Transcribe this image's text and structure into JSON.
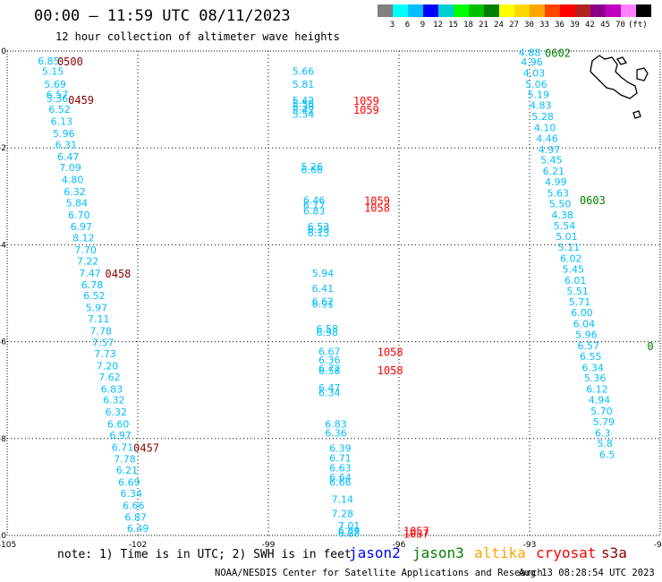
{
  "header": {
    "title": "00:00 – 11:59 UTC 08/11/2023",
    "subtitle": "12 hour collection of altimeter wave heights"
  },
  "color_scale": {
    "colors": [
      "#808080",
      "#00ffff",
      "#00bfff",
      "#0000ff",
      "#00ced1",
      "#00ff00",
      "#00c000",
      "#008000",
      "#ffff00",
      "#ffd700",
      "#ffa500",
      "#ff4500",
      "#ff0000",
      "#b22222",
      "#8b008b",
      "#c000c0",
      "#ff80ff",
      "#000000"
    ],
    "labels": [
      "3",
      "6",
      "9",
      "12",
      "15",
      "18",
      "21",
      "24",
      "27",
      "30",
      "33",
      "36",
      "39",
      "42",
      "45",
      "70",
      "(ft)"
    ]
  },
  "footer": {
    "note": "note: 1) Time is in UTC; 2) SWH is in feet",
    "credit": "NOAA/NESDIS Center for Satellite Applications and Research",
    "timestamp": "Aug 13 08:28:54 UTC 2023"
  },
  "satellites": [
    {
      "name": "jason2",
      "color": "#0000ff"
    },
    {
      "name": "jason3",
      "color": "#008000"
    },
    {
      "name": "altika",
      "color": "#ffa500"
    },
    {
      "name": "cryosat",
      "color": "#ff0000"
    },
    {
      "name": "s3a",
      "color": "#8b0000"
    }
  ],
  "chart_data": {
    "type": "scatter",
    "title": "00:00 – 11:59 UTC 08/11/2023",
    "subtitle": "12 hour collection of altimeter wave heights",
    "xlim": [
      -105,
      -90
    ],
    "ylim": [
      -10,
      0
    ],
    "x_ticks": [
      "-105",
      "-102",
      "-99",
      "-96",
      "-93",
      "-90"
    ],
    "y_ticks": [
      "0",
      "-2",
      "-4",
      "-6",
      "-8",
      "-10"
    ],
    "grid": true,
    "value_color": "#00bfff",
    "tracks": [
      {
        "name": "track-west",
        "time_color": "#8b0000",
        "points": [
          {
            "x": -104.3,
            "y": -0.2,
            "v": "6.85"
          },
          {
            "x": -104.2,
            "y": -0.42,
            "v": "5.15"
          },
          {
            "x": -104.15,
            "y": -0.68,
            "v": "5.69"
          },
          {
            "x": -104.1,
            "y": -0.9,
            "v": "6.57"
          },
          {
            "x": -104.1,
            "y": -0.98,
            "v": "5.36"
          },
          {
            "x": -104.05,
            "y": -1.2,
            "v": "6.52"
          },
          {
            "x": -104.0,
            "y": -1.45,
            "v": "6.13"
          },
          {
            "x": -103.95,
            "y": -1.7,
            "v": "5.96"
          },
          {
            "x": -103.9,
            "y": -1.93,
            "v": "6.31"
          },
          {
            "x": -103.85,
            "y": -2.18,
            "v": "6.47"
          },
          {
            "x": -103.8,
            "y": -2.4,
            "v": "7.09"
          },
          {
            "x": -103.75,
            "y": -2.65,
            "v": "4.80"
          },
          {
            "x": -103.7,
            "y": -2.9,
            "v": "6.32"
          },
          {
            "x": -103.65,
            "y": -3.13,
            "v": "5.84"
          },
          {
            "x": -103.6,
            "y": -3.38,
            "v": "6.70"
          },
          {
            "x": -103.55,
            "y": -3.62,
            "v": "6.97"
          },
          {
            "x": -103.5,
            "y": -3.85,
            "v": "8.12"
          },
          {
            "x": -103.45,
            "y": -4.1,
            "v": "7.70"
          },
          {
            "x": -103.4,
            "y": -4.33,
            "v": "7.22"
          },
          {
            "x": -103.35,
            "y": -4.58,
            "v": "7.47"
          },
          {
            "x": -103.3,
            "y": -4.82,
            "v": "6.78"
          },
          {
            "x": -103.25,
            "y": -5.05,
            "v": "6.52"
          },
          {
            "x": -103.2,
            "y": -5.3,
            "v": "5.97"
          },
          {
            "x": -103.15,
            "y": -5.53,
            "v": "7.11"
          },
          {
            "x": -103.1,
            "y": -5.78,
            "v": "7.78"
          },
          {
            "x": -103.05,
            "y": -6.02,
            "v": "7.57"
          },
          {
            "x": -103.0,
            "y": -6.25,
            "v": "7.73"
          },
          {
            "x": -102.95,
            "y": -6.5,
            "v": "7.20"
          },
          {
            "x": -102.9,
            "y": -6.73,
            "v": "7.62"
          },
          {
            "x": -102.85,
            "y": -6.98,
            "v": "6.83"
          },
          {
            "x": -102.8,
            "y": -7.2,
            "v": "6.32"
          },
          {
            "x": -102.75,
            "y": -7.45,
            "v": "6.32"
          },
          {
            "x": -102.7,
            "y": -7.7,
            "v": "6.60"
          },
          {
            "x": -102.65,
            "y": -7.93,
            "v": "6.97"
          },
          {
            "x": -102.6,
            "y": -8.18,
            "v": "6.71"
          },
          {
            "x": -102.55,
            "y": -8.42,
            "v": "7.78"
          },
          {
            "x": -102.5,
            "y": -8.65,
            "v": "6.21"
          },
          {
            "x": -102.45,
            "y": -8.9,
            "v": "6.69"
          },
          {
            "x": -102.4,
            "y": -9.13,
            "v": "6.34"
          },
          {
            "x": -102.35,
            "y": -9.38,
            "v": "6.66"
          },
          {
            "x": -102.3,
            "y": -9.62,
            "v": "6.87"
          },
          {
            "x": -102.25,
            "y": -9.85,
            "v": "6.49"
          }
        ],
        "times": [
          {
            "x": -103.85,
            "y": -0.2,
            "t": "0500"
          },
          {
            "x": -103.6,
            "y": -1.0,
            "t": "0459"
          },
          {
            "x": -102.75,
            "y": -4.58,
            "t": "0458"
          },
          {
            "x": -102.1,
            "y": -8.18,
            "t": "0457"
          }
        ]
      },
      {
        "name": "track-center",
        "time_color": "#ff0000",
        "points": [
          {
            "x": -98.45,
            "y": -0.42,
            "v": "5.66"
          },
          {
            "x": -98.45,
            "y": -0.68,
            "v": "5.81"
          },
          {
            "x": -98.45,
            "y": -1.02,
            "v": "5.42"
          },
          {
            "x": -98.45,
            "y": -1.08,
            "v": "5.58"
          },
          {
            "x": -98.45,
            "y": -1.15,
            "v": "5.38"
          },
          {
            "x": -98.45,
            "y": -1.22,
            "v": "5.42"
          },
          {
            "x": -98.45,
            "y": -1.3,
            "v": "5.54"
          },
          {
            "x": -98.25,
            "y": -2.38,
            "v": "5.26"
          },
          {
            "x": -98.25,
            "y": -2.45,
            "v": "6.66"
          },
          {
            "x": -98.2,
            "y": -3.08,
            "v": "6.46"
          },
          {
            "x": -98.2,
            "y": -3.18,
            "v": "6.17"
          },
          {
            "x": -98.2,
            "y": -3.3,
            "v": "6.83"
          },
          {
            "x": -98.1,
            "y": -3.62,
            "v": "6.53"
          },
          {
            "x": -98.1,
            "y": -3.68,
            "v": "6.38"
          },
          {
            "x": -98.1,
            "y": -3.75,
            "v": "6.13"
          },
          {
            "x": -98.0,
            "y": -4.58,
            "v": "5.94"
          },
          {
            "x": -98.0,
            "y": -4.9,
            "v": "6.41"
          },
          {
            "x": -98.0,
            "y": -5.17,
            "v": "6.62"
          },
          {
            "x": -98.0,
            "y": -5.22,
            "v": "6.91"
          },
          {
            "x": -97.9,
            "y": -5.73,
            "v": "6.58"
          },
          {
            "x": -97.9,
            "y": -5.8,
            "v": "6.98"
          },
          {
            "x": -97.85,
            "y": -6.2,
            "v": "6.67"
          },
          {
            "x": -97.85,
            "y": -6.38,
            "v": "6.36"
          },
          {
            "x": -97.85,
            "y": -6.55,
            "v": "6.72"
          },
          {
            "x": -97.85,
            "y": -6.6,
            "v": "6.58"
          },
          {
            "x": -97.85,
            "y": -6.95,
            "v": "6.47"
          },
          {
            "x": -97.85,
            "y": -7.05,
            "v": "6.34"
          },
          {
            "x": -97.7,
            "y": -7.7,
            "v": "6.83"
          },
          {
            "x": -97.7,
            "y": -7.88,
            "v": "6.36"
          },
          {
            "x": -97.6,
            "y": -8.2,
            "v": "6.39"
          },
          {
            "x": -97.6,
            "y": -8.4,
            "v": "6.71"
          },
          {
            "x": -97.6,
            "y": -8.6,
            "v": "6.63"
          },
          {
            "x": -97.6,
            "y": -8.8,
            "v": "6.64"
          },
          {
            "x": -97.6,
            "y": -8.9,
            "v": "6.66"
          },
          {
            "x": -97.55,
            "y": -9.25,
            "v": "7.14"
          },
          {
            "x": -97.55,
            "y": -9.55,
            "v": "7.28"
          },
          {
            "x": -97.4,
            "y": -9.8,
            "v": "7.01"
          },
          {
            "x": -97.4,
            "y": -9.9,
            "v": "6.89"
          },
          {
            "x": -97.4,
            "y": -9.95,
            "v": "6.88"
          }
        ],
        "times": [
          {
            "x": -97.05,
            "y": -1.02,
            "t": "1059"
          },
          {
            "x": -97.05,
            "y": -1.2,
            "t": "1059"
          },
          {
            "x": -96.8,
            "y": -3.08,
            "t": "1059"
          },
          {
            "x": -96.8,
            "y": -3.23,
            "t": "1058"
          },
          {
            "x": -96.5,
            "y": -6.2,
            "t": "1058"
          },
          {
            "x": -96.5,
            "y": -6.58,
            "t": "1058"
          },
          {
            "x": -95.9,
            "y": -9.9,
            "t": "1057"
          },
          {
            "x": -95.9,
            "y": -9.95,
            "t": "1057"
          }
        ]
      },
      {
        "name": "track-east",
        "time_color": "#008000",
        "points": [
          {
            "x": -93.25,
            "y": -0.03,
            "v": "4.88"
          },
          {
            "x": -93.2,
            "y": -0.22,
            "v": "4.96"
          },
          {
            "x": -93.15,
            "y": -0.45,
            "v": "4.03"
          },
          {
            "x": -93.1,
            "y": -0.68,
            "v": "5.06"
          },
          {
            "x": -93.05,
            "y": -0.9,
            "v": "5.19"
          },
          {
            "x": -93.0,
            "y": -1.12,
            "v": "4.83"
          },
          {
            "x": -92.95,
            "y": -1.35,
            "v": "5.28"
          },
          {
            "x": -92.9,
            "y": -1.58,
            "v": "4.10"
          },
          {
            "x": -92.85,
            "y": -1.8,
            "v": "4.46"
          },
          {
            "x": -92.8,
            "y": -2.03,
            "v": "4.97"
          },
          {
            "x": -92.75,
            "y": -2.25,
            "v": "5.45"
          },
          {
            "x": -92.7,
            "y": -2.48,
            "v": "6.21"
          },
          {
            "x": -92.65,
            "y": -2.7,
            "v": "4.99"
          },
          {
            "x": -92.6,
            "y": -2.93,
            "v": "5.63"
          },
          {
            "x": -92.55,
            "y": -3.15,
            "v": "5.50"
          },
          {
            "x": -92.5,
            "y": -3.38,
            "v": "4.38"
          },
          {
            "x": -92.45,
            "y": -3.6,
            "v": "5.54"
          },
          {
            "x": -92.4,
            "y": -3.83,
            "v": "5.01"
          },
          {
            "x": -92.35,
            "y": -4.05,
            "v": "5.11"
          },
          {
            "x": -92.3,
            "y": -4.28,
            "v": "6.02"
          },
          {
            "x": -92.25,
            "y": -4.5,
            "v": "5.45"
          },
          {
            "x": -92.2,
            "y": -4.73,
            "v": "6.01"
          },
          {
            "x": -92.15,
            "y": -4.95,
            "v": "5.51"
          },
          {
            "x": -92.1,
            "y": -5.18,
            "v": "5.71"
          },
          {
            "x": -92.05,
            "y": -5.4,
            "v": "6.00"
          },
          {
            "x": -92.0,
            "y": -5.63,
            "v": "6.04"
          },
          {
            "x": -91.95,
            "y": -5.85,
            "v": "5.96"
          },
          {
            "x": -91.9,
            "y": -6.08,
            "v": "6.57"
          },
          {
            "x": -91.85,
            "y": -6.3,
            "v": "6.55"
          },
          {
            "x": -91.8,
            "y": -6.53,
            "v": "6.34"
          },
          {
            "x": -91.75,
            "y": -6.75,
            "v": "5.36"
          },
          {
            "x": -91.7,
            "y": -6.98,
            "v": "6.12"
          },
          {
            "x": -91.65,
            "y": -7.2,
            "v": "4.94"
          },
          {
            "x": -91.6,
            "y": -7.43,
            "v": "5.70"
          },
          {
            "x": -91.55,
            "y": -7.65,
            "v": "5.79"
          },
          {
            "x": -91.5,
            "y": -7.88,
            "v": "6.3"
          },
          {
            "x": -91.45,
            "y": -8.1,
            "v": "5.8"
          },
          {
            "x": -91.4,
            "y": -8.33,
            "v": "6.5"
          }
        ],
        "times": [
          {
            "x": -92.65,
            "y": -0.03,
            "t": "0602"
          },
          {
            "x": -91.85,
            "y": -3.07,
            "t": "0603"
          },
          {
            "x": -90.3,
            "y": -6.08,
            "t": "0"
          }
        ]
      }
    ]
  }
}
